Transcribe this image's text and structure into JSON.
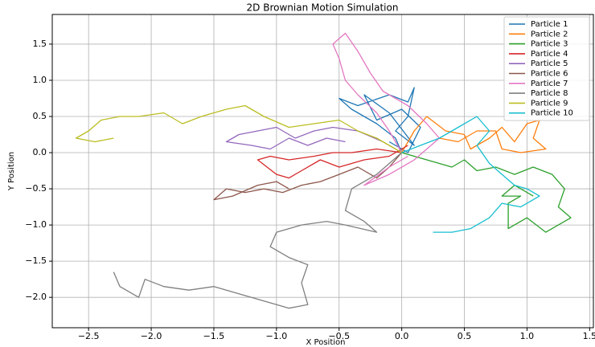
{
  "chart_data": {
    "type": "line",
    "title": "2D Brownian Motion Simulation",
    "x_label": "X Position",
    "y_label": "Y Position",
    "xlim": [
      -2.79,
      1.53
    ],
    "ylim": [
      -2.42,
      1.91
    ],
    "xticks": [
      {
        "value": -2.5,
        "label": "−2.5"
      },
      {
        "value": -2.0,
        "label": "−2.0"
      },
      {
        "value": -1.5,
        "label": "−1.5"
      },
      {
        "value": -1.0,
        "label": "−1.0"
      },
      {
        "value": -0.5,
        "label": "−0.5"
      },
      {
        "value": 0,
        "label": "0.0"
      },
      {
        "value": 0.5,
        "label": "0.5"
      },
      {
        "value": 1.0,
        "label": "1.0"
      },
      {
        "value": 1.5,
        "label": "1.5"
      }
    ],
    "yticks": [
      {
        "value": -2.0,
        "label": "−2.0"
      },
      {
        "value": -1.5,
        "label": "−1.5"
      },
      {
        "value": -1.0,
        "label": "−1.0"
      },
      {
        "value": -0.5,
        "label": "−0.5"
      },
      {
        "value": 0,
        "label": "0.0"
      },
      {
        "value": 0.5,
        "label": "0.5"
      },
      {
        "value": 1.0,
        "label": "1.0"
      },
      {
        "value": 1.5,
        "label": "1.5"
      }
    ],
    "grid": true,
    "legend": "upper right",
    "series": [
      {
        "name": "Particle 1",
        "color": "#1f77b4",
        "x": [
          0,
          -0.05,
          -0.2,
          -0.4,
          -0.5,
          -0.35,
          -0.1,
          0.05,
          0.1,
          0.05,
          -0.05,
          0.1,
          -0.1,
          -0.3,
          -0.2,
          0,
          0.15,
          0.05,
          -0.1
        ],
        "values": [
          0,
          0.2,
          0.4,
          0.6,
          0.75,
          0.65,
          0.8,
          0.7,
          0.9,
          0.5,
          0.3,
          0.1,
          0.55,
          0.8,
          0.45,
          0.6,
          0.35,
          0,
          0.15
        ]
      },
      {
        "name": "Particle 2",
        "color": "#ff7f0e",
        "x": [
          0,
          0.1,
          0.2,
          0.35,
          0.5,
          0.55,
          0.7,
          0.8,
          0.9,
          1.0,
          1.1,
          1.05,
          1.15,
          0.95,
          0.8,
          0.75,
          0.6,
          0.45,
          0.3
        ],
        "values": [
          0,
          0.3,
          0.5,
          0.3,
          0.25,
          0.05,
          0.2,
          0.35,
          0.15,
          0.4,
          0.45,
          0.2,
          0.05,
          0,
          0.05,
          0.3,
          0.3,
          0.15,
          0.2
        ]
      },
      {
        "name": "Particle 3",
        "color": "#2ca02c",
        "x": [
          0,
          0.2,
          0.4,
          0.5,
          0.6,
          0.75,
          0.9,
          1.05,
          1.2,
          1.3,
          1.25,
          1.35,
          1.15,
          1.0,
          0.85,
          0.85,
          0.95,
          0.8,
          0.9,
          1.05
        ],
        "values": [
          0,
          -0.1,
          -0.2,
          -0.1,
          -0.25,
          -0.2,
          -0.3,
          -0.2,
          -0.3,
          -0.5,
          -0.75,
          -0.9,
          -1.1,
          -0.9,
          -1.05,
          -0.7,
          -0.6,
          -0.6,
          -0.45,
          -0.6
        ]
      },
      {
        "name": "Particle 4",
        "color": "#d62728",
        "x": [
          0,
          -0.2,
          -0.4,
          -0.55,
          -0.7,
          -0.9,
          -1.05,
          -1.15,
          -1.0,
          -0.9,
          -0.8,
          -0.65,
          -0.5,
          -0.3,
          -0.1,
          0.05
        ],
        "values": [
          0,
          0.05,
          0,
          0,
          -0.05,
          -0.1,
          -0.05,
          -0.1,
          -0.3,
          -0.35,
          -0.25,
          -0.1,
          -0.2,
          -0.1,
          -0.05,
          0.1
        ]
      },
      {
        "name": "Particle 5",
        "color": "#9467bd",
        "x": [
          0,
          -0.15,
          -0.35,
          -0.55,
          -0.7,
          -0.85,
          -1.0,
          -1.15,
          -1.3,
          -1.4,
          -1.2,
          -1.05,
          -0.9,
          -0.75,
          -0.6,
          -0.45
        ],
        "values": [
          0,
          0.15,
          0.3,
          0.35,
          0.3,
          0.2,
          0.35,
          0.3,
          0.25,
          0.15,
          0.1,
          0.05,
          0.2,
          0.1,
          0.2,
          0.15
        ]
      },
      {
        "name": "Particle 6",
        "color": "#8c564b",
        "x": [
          0,
          -0.1,
          -0.2,
          -0.35,
          -0.5,
          -0.65,
          -0.8,
          -0.95,
          -1.1,
          -1.25,
          -1.4,
          -1.5,
          -1.35,
          -1.15,
          -1.0,
          -0.9
        ],
        "values": [
          0,
          -0.2,
          -0.35,
          -0.2,
          -0.3,
          -0.4,
          -0.45,
          -0.55,
          -0.5,
          -0.55,
          -0.5,
          -0.65,
          -0.6,
          -0.45,
          -0.4,
          -0.5
        ]
      },
      {
        "name": "Particle 7",
        "color": "#e377c2",
        "x": [
          0,
          -0.1,
          -0.2,
          -0.35,
          -0.45,
          -0.5,
          -0.55,
          -0.45,
          -0.35,
          -0.25,
          -0.15,
          0.05,
          0.2,
          0.3,
          0.1,
          -0.1,
          -0.3,
          -0.1,
          0.05
        ],
        "values": [
          0,
          0.3,
          0.55,
          0.8,
          1.0,
          1.3,
          1.5,
          1.65,
          1.4,
          1.1,
          0.85,
          0.65,
          0.4,
          0.2,
          -0.1,
          -0.3,
          -0.45,
          -0.2,
          -0.05
        ]
      },
      {
        "name": "Particle 8",
        "color": "#7f7f7f",
        "x": [
          0,
          -0.2,
          -0.4,
          -0.45,
          -0.3,
          -0.2,
          -0.45,
          -0.6,
          -0.8,
          -1.0,
          -1.05,
          -0.9,
          -0.75,
          -0.8,
          -0.75,
          -0.9,
          -1.1,
          -1.3,
          -1.5,
          -1.7,
          -1.9,
          -2.05,
          -2.1,
          -2.25,
          -2.3
        ],
        "values": [
          0,
          -0.3,
          -0.5,
          -0.8,
          -0.95,
          -1.1,
          -1.0,
          -0.95,
          -1.0,
          -1.1,
          -1.3,
          -1.45,
          -1.55,
          -1.8,
          -2.1,
          -2.15,
          -2.05,
          -1.95,
          -1.85,
          -1.9,
          -1.85,
          -1.75,
          -2.0,
          -1.85,
          -1.65
        ]
      },
      {
        "name": "Particle 9",
        "color": "#bcbd22",
        "x": [
          0,
          -0.2,
          -0.35,
          -0.5,
          -0.7,
          -0.9,
          -1.1,
          -1.25,
          -1.4,
          -1.6,
          -1.75,
          -1.9,
          -2.1,
          -2.25,
          -2.4,
          -2.5,
          -2.6,
          -2.45,
          -2.3
        ],
        "values": [
          0,
          0.2,
          0.3,
          0.45,
          0.4,
          0.35,
          0.5,
          0.65,
          0.6,
          0.5,
          0.4,
          0.55,
          0.5,
          0.5,
          0.45,
          0.3,
          0.2,
          0.15,
          0.2
        ]
      },
      {
        "name": "Particle 10",
        "color": "#17becf",
        "x": [
          0,
          0.15,
          0.3,
          0.45,
          0.6,
          0.7,
          0.6,
          0.7,
          0.8,
          0.9,
          1.0,
          1.1,
          0.95,
          0.8,
          0.7,
          0.55,
          0.4,
          0.25
        ],
        "values": [
          0,
          0.1,
          0.2,
          0.35,
          0.5,
          0.3,
          0.1,
          -0.15,
          -0.3,
          -0.45,
          -0.5,
          -0.6,
          -0.75,
          -0.7,
          -0.9,
          -1.05,
          -1.1,
          -1.1
        ]
      }
    ]
  }
}
